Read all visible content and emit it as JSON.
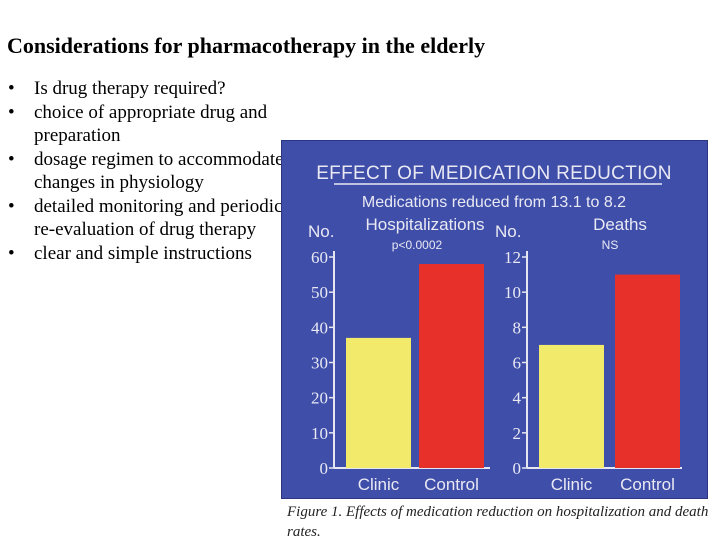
{
  "title": "Considerations for pharmacotherapy in the elderly",
  "bullets": [
    "Is drug therapy required?",
    "choice of appropriate drug and preparation",
    "dosage regimen to accommodate changes in physiology",
    "detailed monitoring and periodic re-evaluation of drug therapy",
    "clear and simple instructions"
  ],
  "bullet_symbol": "•",
  "colors": {
    "panel": "#3f4ea8",
    "clinic_bar": "#f2ea6a",
    "control_bar": "#e8302a",
    "axis": "#e6e6f2",
    "text": "#e9e9f4"
  },
  "chart_data": [
    {
      "type": "bar",
      "figure_title": "EFFECT OF MEDICATION REDUCTION",
      "figure_subtitle": "Medications reduced from 13.1 to 8.2",
      "title": "Hospitalizations",
      "ylabel": "No.",
      "significance": "p<0.0002",
      "categories": [
        "Clinic",
        "Control"
      ],
      "values": [
        37,
        58
      ],
      "ylim": [
        0,
        60
      ],
      "ticks": [
        "0",
        "10",
        "20",
        "30",
        "40",
        "50",
        "60"
      ]
    },
    {
      "type": "bar",
      "title": "Deaths",
      "ylabel": "No.",
      "significance": "NS",
      "categories": [
        "Clinic",
        "Control"
      ],
      "values": [
        7,
        11
      ],
      "ylim": [
        0,
        12
      ],
      "ticks": [
        "0",
        "2",
        "4",
        "6",
        "8",
        "10",
        "12"
      ]
    }
  ],
  "caption": "Figure 1. Effects of medication reduction on hospitalization and death rates."
}
